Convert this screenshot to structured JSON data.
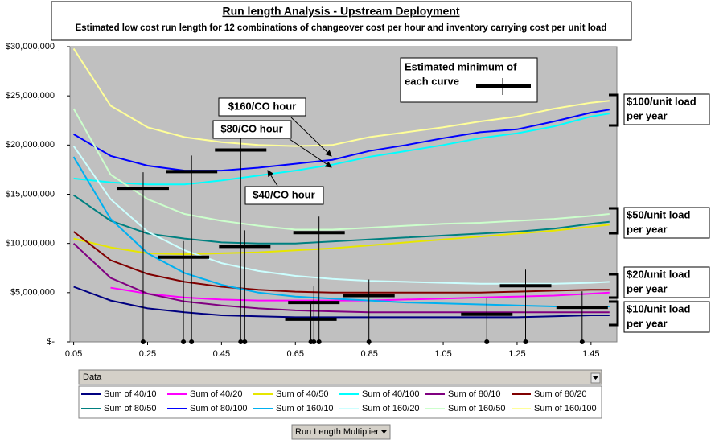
{
  "chart_data": {
    "type": "line",
    "title": "Run length Analysis - Upstream Deployment",
    "subtitle": "Estimated low cost run length for 12 combinations of changeover cost per hour and inventory carrying cost per unit load",
    "x": [
      0.05,
      0.15,
      0.25,
      0.35,
      0.45,
      0.55,
      0.65,
      0.75,
      0.85,
      0.95,
      1.05,
      1.15,
      1.25,
      1.35,
      1.45,
      1.5
    ],
    "xlim": [
      0.04,
      1.52
    ],
    "xticks": [
      0.05,
      0.25,
      0.45,
      0.65,
      0.85,
      1.05,
      1.25,
      1.45
    ],
    "ylim": [
      0,
      30000000
    ],
    "yticks": [
      {
        "value": 0,
        "label": "$-"
      },
      {
        "value": 5000000,
        "label": "$5,000,000"
      },
      {
        "value": 10000000,
        "label": "$10,000,000"
      },
      {
        "value": 15000000,
        "label": "$15,000,000"
      },
      {
        "value": 20000000,
        "label": "$20,000,000"
      },
      {
        "value": 25000000,
        "label": "$25,000,000"
      },
      {
        "value": 30000000,
        "label": "$30,000,000"
      }
    ],
    "grid": false,
    "series": [
      {
        "name": "Sum of 40/10",
        "color": "#000080",
        "values": [
          5600000,
          4200000,
          3400000,
          3000000,
          2700000,
          2600000,
          2500000,
          2500000,
          2500000,
          2500000,
          2500000,
          2500000,
          2500000,
          2600000,
          2700000,
          2700000
        ]
      },
      {
        "name": "Sum of 40/20",
        "color": "#ff00ff",
        "values": [
          null,
          5500000,
          4900000,
          4500000,
          4300000,
          4200000,
          4200000,
          4200000,
          4200000,
          4300000,
          4400000,
          4500000,
          4600000,
          4700000,
          4900000,
          5000000
        ]
      },
      {
        "name": "Sum of 40/50",
        "color": "#e6e600",
        "values": [
          10500000,
          9600000,
          9000000,
          8900000,
          9000000,
          9100000,
          9300000,
          9500000,
          9800000,
          10100000,
          10400000,
          10700000,
          11000000,
          11300000,
          11700000,
          11900000
        ]
      },
      {
        "name": "Sum of 40/100",
        "color": "#00ffff",
        "values": [
          16600000,
          16200000,
          16000000,
          16000000,
          16400000,
          16900000,
          17400000,
          18000000,
          18800000,
          19400000,
          20000000,
          20700000,
          21200000,
          21900000,
          22900000,
          23200000
        ]
      },
      {
        "name": "Sum of 80/10",
        "color": "#800080",
        "values": [
          10000000,
          6500000,
          4900000,
          4100000,
          3700000,
          3400000,
          3200000,
          3100000,
          3000000,
          3000000,
          3000000,
          3000000,
          3000000,
          3000000,
          3000000,
          3000000
        ]
      },
      {
        "name": "Sum of 80/20",
        "color": "#800000",
        "values": [
          11200000,
          8300000,
          6900000,
          6100000,
          5600000,
          5300000,
          5100000,
          5000000,
          5000000,
          5000000,
          5000000,
          5000000,
          5100000,
          5200000,
          5300000,
          5300000
        ]
      },
      {
        "name": "Sum of 80/50",
        "color": "#008080",
        "values": [
          14900000,
          12300000,
          11000000,
          10500000,
          10100000,
          10000000,
          10000000,
          10200000,
          10400000,
          10600000,
          10800000,
          11000000,
          11200000,
          11500000,
          12000000,
          12200000
        ]
      },
      {
        "name": "Sum of 80/100",
        "color": "#0000ff",
        "values": [
          21100000,
          18900000,
          17900000,
          17400000,
          17400000,
          17700000,
          18100000,
          18500000,
          19400000,
          20000000,
          20700000,
          21300000,
          21600000,
          22400000,
          23300000,
          23600000
        ]
      },
      {
        "name": "Sum of 160/10",
        "color": "#00b0f0",
        "values": [
          18800000,
          12500000,
          9000000,
          7000000,
          5800000,
          5000000,
          4600000,
          4400000,
          4200000,
          4000000,
          3900000,
          3800000,
          3700000,
          3600000,
          3600000,
          3600000
        ]
      },
      {
        "name": "Sum of 160/20",
        "color": "#ccffff",
        "values": [
          19900000,
          14500000,
          11200000,
          9300000,
          8000000,
          7200000,
          6700000,
          6400000,
          6200000,
          6100000,
          6000000,
          5900000,
          5900000,
          5900000,
          6000000,
          6100000
        ]
      },
      {
        "name": "Sum of 160/50",
        "color": "#ccffcc",
        "values": [
          23700000,
          17000000,
          14500000,
          13000000,
          12300000,
          11800000,
          11400000,
          11400000,
          11600000,
          11800000,
          12000000,
          12100000,
          12300000,
          12500000,
          12800000,
          13000000
        ]
      },
      {
        "name": "Sum of 160/100",
        "color": "#ffff99",
        "values": [
          29800000,
          24000000,
          21800000,
          20800000,
          20300000,
          20000000,
          19900000,
          20000000,
          20800000,
          21300000,
          21800000,
          22400000,
          22900000,
          23700000,
          24300000,
          24500000
        ]
      }
    ],
    "minima": {
      "x": [
        0.238,
        0.369,
        0.502,
        0.347,
        0.513,
        0.714,
        0.692,
        0.7,
        0.849,
        1.168,
        1.273,
        1.426
      ],
      "y": [
        15600000,
        17300000,
        19500000,
        8600000,
        9700000,
        11100000,
        2300000,
        4000000,
        4700000,
        2800000,
        5700000,
        3500000
      ]
    },
    "annotations": {
      "co_hour": [
        "$160/CO hour",
        "$80/CO hour",
        "$40/CO hour"
      ],
      "minimum_key": [
        "Estimated minimum of",
        "each curve"
      ],
      "unit_load": [
        [
          "$100/unit load",
          "per year"
        ],
        [
          "$50/unit load",
          "per year"
        ],
        [
          "$20/unit load",
          "per year"
        ],
        [
          "$10/unit load",
          "per year"
        ]
      ]
    },
    "data_field": "Data",
    "category_field": "Run Length Multiplier"
  }
}
